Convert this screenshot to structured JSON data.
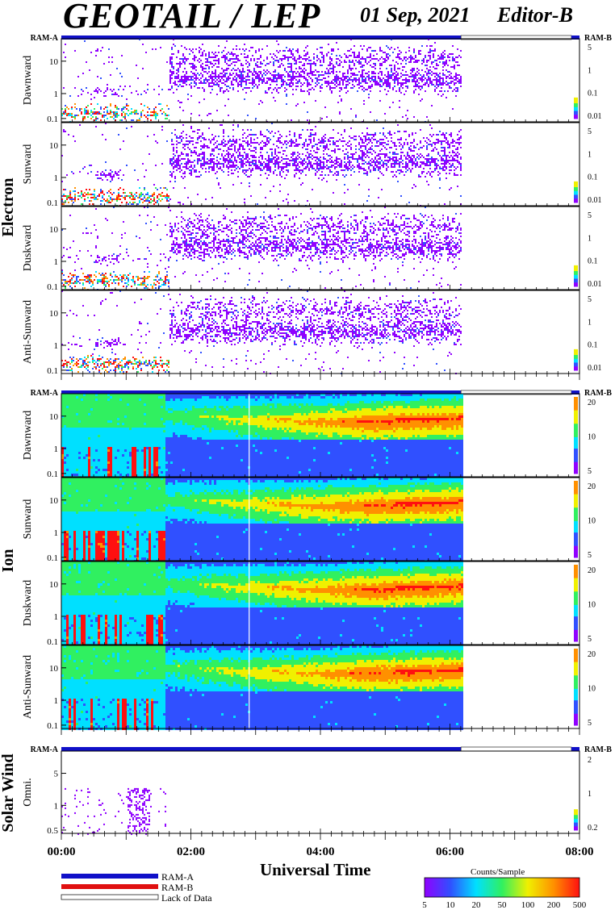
{
  "header": {
    "title": "GEOTAIL / LEP",
    "date": "01 Sep, 2021",
    "editor": "Editor-B"
  },
  "colors": {
    "ram_a": "#1010c8",
    "ram_b": "#e01010",
    "lack_of_data": "#ffffff",
    "colormap": [
      "#ffffff",
      "#9000ff",
      "#3050ff",
      "#00e0ff",
      "#30f060",
      "#f0f000",
      "#ff9000",
      "#ff1010"
    ]
  },
  "chart_data": {
    "type": "heatmap",
    "x_unit": "UT hours",
    "xlim": [
      0,
      8
    ],
    "data_coverage_end_hour": 6.17,
    "ticks": [
      "00:00",
      "02:00",
      "04:00",
      "06:00",
      "08:00"
    ],
    "xlabel": "Universal Time",
    "ram_bar_left": "RAM-A",
    "ram_bar_right": "RAM-B",
    "groups": [
      {
        "name": "Electron",
        "panels": [
          {
            "label": "Dawnward",
            "yticks": [
              "10",
              "1",
              "0.1"
            ],
            "cbar_ticks": [
              "5",
              "1",
              "0.1",
              "0.01"
            ]
          },
          {
            "label": "Sunward",
            "yticks": [
              "10",
              "1",
              "0.1"
            ],
            "cbar_ticks": [
              "5",
              "1",
              "0.1",
              "0.01"
            ]
          },
          {
            "label": "Duskward",
            "yticks": [
              "10",
              "1",
              "0.1"
            ],
            "cbar_ticks": [
              "5",
              "1",
              "0.1",
              "0.01"
            ]
          },
          {
            "label": "Anti-Sunward",
            "yticks": [
              "10",
              "1",
              "0.1"
            ],
            "cbar_ticks": [
              "5",
              "1",
              "0.1",
              "0.01"
            ]
          }
        ]
      },
      {
        "name": "Ion",
        "panels": [
          {
            "label": "Dawnward",
            "yticks": [
              "10",
              "1",
              "0.1"
            ],
            "cbar_ticks": [
              "20",
              "10",
              "5"
            ]
          },
          {
            "label": "Sunward",
            "yticks": [
              "10",
              "1",
              "0.1"
            ],
            "cbar_ticks": [
              "20",
              "10",
              "5"
            ]
          },
          {
            "label": "Duskward",
            "yticks": [
              "10",
              "1",
              "0.1"
            ],
            "cbar_ticks": [
              "20",
              "10",
              "5"
            ]
          },
          {
            "label": "Anti-Sunward",
            "yticks": [
              "10",
              "1",
              "0.1"
            ],
            "cbar_ticks": [
              "20",
              "10",
              "5"
            ]
          }
        ]
      },
      {
        "name": "Solar Wind",
        "panels": [
          {
            "label": "Omni.",
            "yticks": [
              "5",
              "1",
              "0.5"
            ],
            "cbar_ticks": [
              "2",
              "1",
              "0.2"
            ]
          }
        ]
      }
    ],
    "legend": [
      "RAM-A",
      "RAM-B",
      "Lack of Data"
    ],
    "colorbar": {
      "title": "Counts/Sample",
      "ticks": [
        "5",
        "10",
        "20",
        "50",
        "100",
        "200",
        "500"
      ]
    }
  }
}
